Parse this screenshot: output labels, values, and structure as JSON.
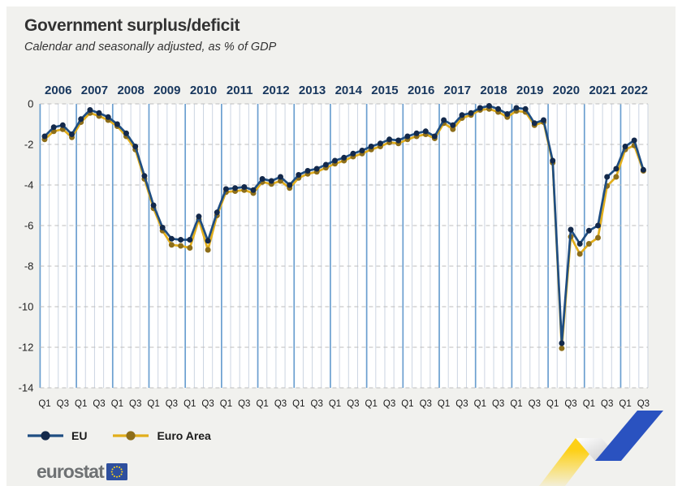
{
  "header": {
    "title": "Government surplus/deficit",
    "subtitle": "Calendar and seasonally adjusted, as % of GDP"
  },
  "footer": {
    "logo_text": "eurostat"
  },
  "chart_data": {
    "type": "line",
    "title": "Government surplus/deficit",
    "subtitle": "Calendar and seasonally adjusted, as % of GDP",
    "ylim": [
      -14,
      0
    ],
    "yticks": [
      "0",
      "-2",
      "-4",
      "-6",
      "-8",
      "-10",
      "-12",
      "-14"
    ],
    "grid": "horizontal-dashed with quarterly vertical rules, yearly rules emphasized",
    "legend_position": "bottom-left",
    "years": [
      "2006",
      "2007",
      "2008",
      "2009",
      "2010",
      "2011",
      "2012",
      "2013",
      "2014",
      "2015",
      "2016",
      "2017",
      "2018",
      "2019",
      "2020",
      "2021",
      "2022"
    ],
    "quarter_ticks": [
      "Q1",
      "Q3"
    ],
    "x_note": "quarterly data 2006Q1 - 2022Q3, 67 points per series",
    "colors": {
      "year_label": "#17365d",
      "year_gridline": "#6b9fd0",
      "quarter_gridline": "#ccd5e2",
      "dashed_gridline": "#bdbdbd",
      "background": "#f1f1ee",
      "plot_background": "#ffffff"
    },
    "series": [
      {
        "name": "EU",
        "line_color": "#1f4e82",
        "dot_color": "#13294b",
        "values": [
          -1.6,
          -1.15,
          -1.05,
          -1.5,
          -0.75,
          -0.3,
          -0.45,
          -0.65,
          -1.0,
          -1.45,
          -2.1,
          -3.55,
          -5.0,
          -6.1,
          -6.65,
          -6.7,
          -6.7,
          -5.55,
          -6.75,
          -5.35,
          -4.2,
          -4.15,
          -4.1,
          -4.25,
          -3.7,
          -3.8,
          -3.6,
          -4.0,
          -3.5,
          -3.3,
          -3.2,
          -3.0,
          -2.8,
          -2.65,
          -2.45,
          -2.3,
          -2.1,
          -1.95,
          -1.75,
          -1.8,
          -1.6,
          -1.45,
          -1.35,
          -1.6,
          -0.8,
          -1.05,
          -0.55,
          -0.45,
          -0.2,
          -0.1,
          -0.25,
          -0.5,
          -0.2,
          -0.25,
          -0.95,
          -0.8,
          -2.8,
          -11.8,
          -6.2,
          -6.9,
          -6.25,
          -6.0,
          -3.6,
          -3.2,
          -2.1,
          -1.8,
          -3.25
        ]
      },
      {
        "name": "Euro Area",
        "line_color": "#e2ae1a",
        "dot_color": "#8d6e1a",
        "values": [
          -1.75,
          -1.35,
          -1.25,
          -1.65,
          -0.9,
          -0.45,
          -0.6,
          -0.8,
          -1.1,
          -1.6,
          -2.25,
          -3.7,
          -5.15,
          -6.25,
          -6.95,
          -7.0,
          -7.1,
          -5.7,
          -7.2,
          -5.5,
          -4.35,
          -4.3,
          -4.25,
          -4.4,
          -3.85,
          -3.95,
          -3.8,
          -4.15,
          -3.65,
          -3.45,
          -3.35,
          -3.15,
          -2.95,
          -2.8,
          -2.6,
          -2.45,
          -2.25,
          -2.1,
          -1.9,
          -1.95,
          -1.75,
          -1.6,
          -1.5,
          -1.7,
          -0.95,
          -1.25,
          -0.7,
          -0.55,
          -0.3,
          -0.25,
          -0.4,
          -0.65,
          -0.35,
          -0.4,
          -1.05,
          -0.9,
          -2.9,
          -12.05,
          -6.55,
          -7.4,
          -6.9,
          -6.6,
          -4.05,
          -3.6,
          -2.25,
          -2.05,
          -3.3
        ]
      }
    ]
  }
}
